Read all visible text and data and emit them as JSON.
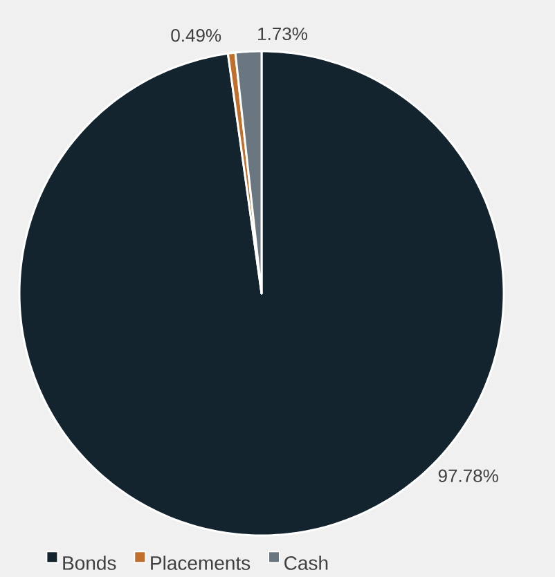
{
  "chart_data": {
    "type": "pie",
    "categories": [
      "Bonds",
      "Placements",
      "Cash"
    ],
    "values": [
      97.78,
      0.49,
      1.73
    ],
    "colors": [
      "#13242f",
      "#c0702c",
      "#6b7780"
    ],
    "value_labels": [
      "97.78%",
      "0.49%",
      "1.73%"
    ],
    "legend": "bottom"
  }
}
